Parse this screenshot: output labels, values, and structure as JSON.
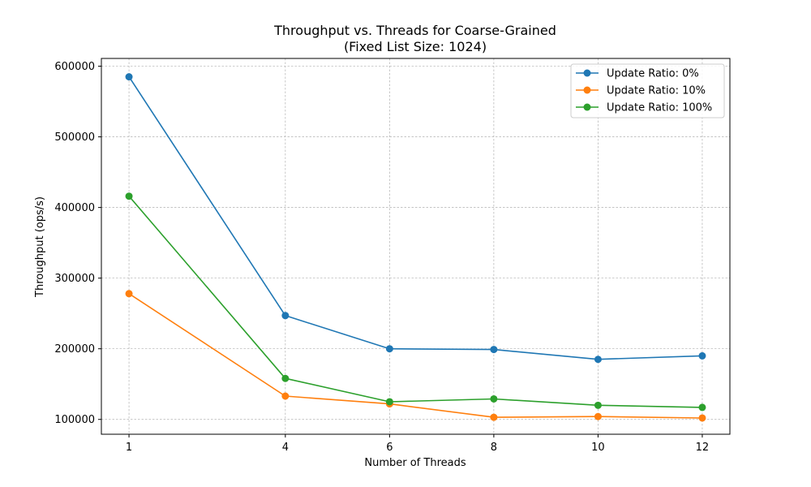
{
  "chart_data": {
    "type": "line",
    "title": "Throughput vs. Threads for Coarse-Grained",
    "subtitle": "(Fixed List Size: 1024)",
    "xlabel": "Number of Threads",
    "ylabel": "Throughput (ops/s)",
    "x": [
      1,
      4,
      6,
      8,
      10,
      12
    ],
    "xticks": [
      1,
      4,
      6,
      8,
      10,
      12
    ],
    "yticks": [
      100000,
      200000,
      300000,
      400000,
      500000,
      600000
    ],
    "xlim": [
      0.47,
      12.53
    ],
    "ylim": [
      79000,
      611000
    ],
    "grid": true,
    "legend_position": "top-right",
    "series": [
      {
        "name": "Update Ratio: 0%",
        "color": "#1f77b4",
        "values": [
          585000,
          247000,
          200000,
          199000,
          185000,
          190000
        ]
      },
      {
        "name": "Update Ratio: 10%",
        "color": "#ff7f0e",
        "values": [
          278000,
          133000,
          122000,
          103000,
          104000,
          102000
        ]
      },
      {
        "name": "Update Ratio: 100%",
        "color": "#2ca02c",
        "values": [
          416000,
          158000,
          125000,
          129000,
          120000,
          117000
        ]
      }
    ]
  }
}
